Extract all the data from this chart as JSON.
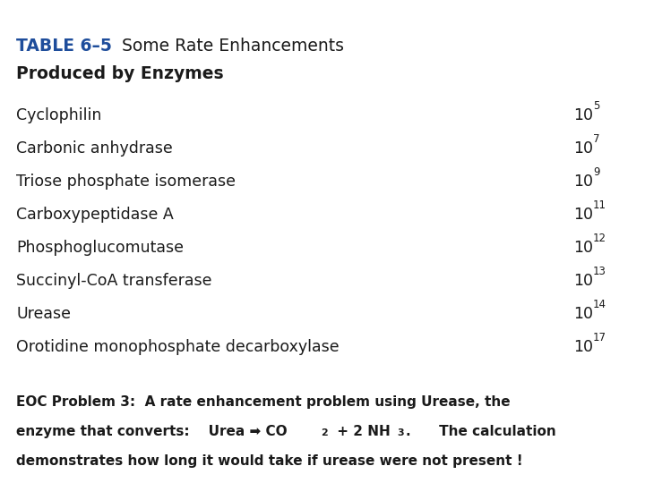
{
  "title_bold": "TABLE 6–5",
  "title_regular": "   Some Rate Enhancements",
  "subtitle": "Produced by Enzymes",
  "title_blue": "#1e4d9b",
  "text_dark": "#1a1a1a",
  "enzymes": [
    "Cyclophilin",
    "Carbonic anhydrase",
    "Triose phosphate isomerase",
    "Carboxypeptidase A",
    "Phosphoglucomutase",
    "Succinyl-CoA transferase",
    "Urease",
    "Orotidine monophosphate decarboxylase"
  ],
  "exponents": [
    "5",
    "7",
    "9",
    "11",
    "12",
    "13",
    "14",
    "17"
  ],
  "bg_color": "#ffffff",
  "title_fontsize": 13.5,
  "subtitle_fontsize": 13.5,
  "enzyme_fontsize": 12.5,
  "eoc_fontsize": 11.0,
  "fig_width": 7.2,
  "fig_height": 5.4,
  "dpi": 100
}
